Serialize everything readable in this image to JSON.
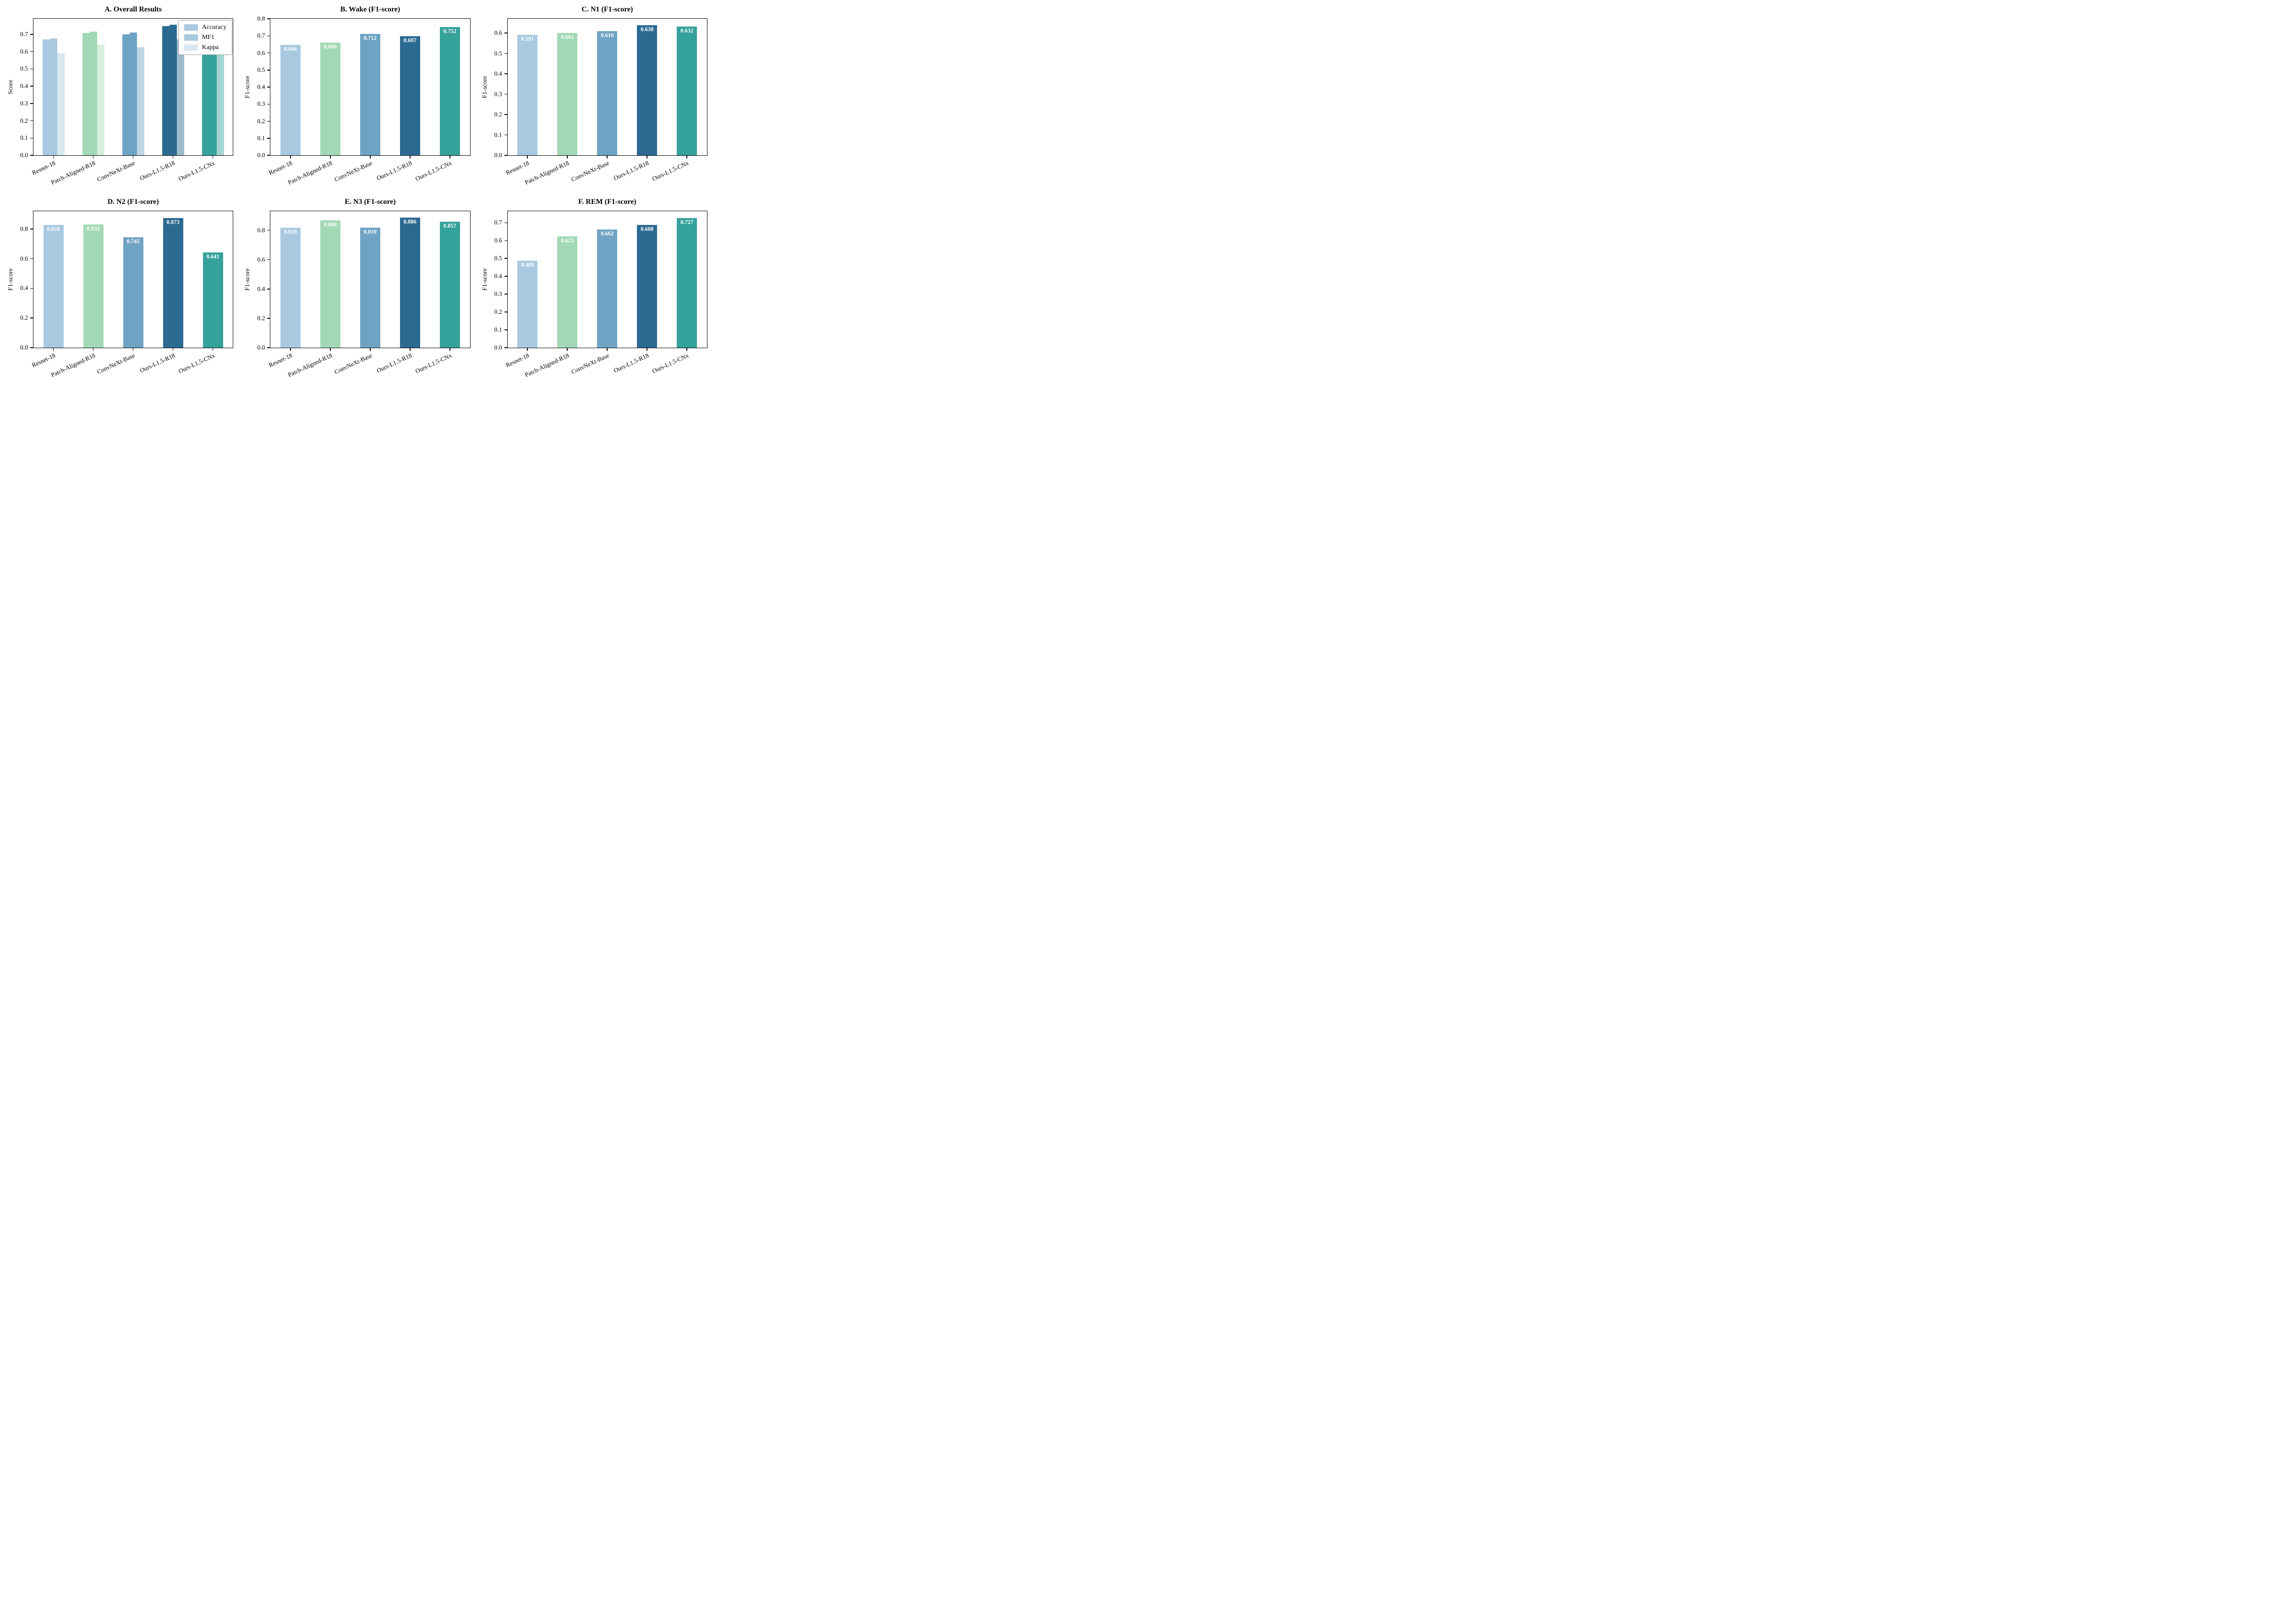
{
  "figure": {
    "background": "#ffffff",
    "model_colors": [
      "#a8c9e0",
      "#a2d9b4",
      "#6fa3c3",
      "#2b6a91",
      "#35a19b"
    ],
    "kappa_alpha": 0.45,
    "value_label_color": "#ffffff"
  },
  "chart_data": [
    {
      "id": "A",
      "type": "bar",
      "grouped": true,
      "title": "A. Overall Results",
      "ylabel": "Score",
      "categories": [
        "Resnet-18",
        "Patch-Aligned-R18",
        "ConvNeXt-Base",
        "Ours-L1.5-R18",
        "Ours-L1.5-CNx"
      ],
      "series": [
        {
          "name": "Accuracy",
          "style": "hatched",
          "values": [
            0.67,
            0.707,
            0.7,
            0.747,
            0.704
          ]
        },
        {
          "name": "MF1",
          "style": "solid",
          "values": [
            0.675,
            0.717,
            0.71,
            0.756,
            0.722
          ]
        },
        {
          "name": "Kappa",
          "style": "light",
          "values": [
            0.59,
            0.638,
            0.625,
            0.672,
            0.645
          ]
        }
      ],
      "ylim": [
        0,
        0.79
      ],
      "ytick_step": 0.1,
      "legend_position": "upper right",
      "grid": false,
      "value_labels": false
    },
    {
      "id": "B",
      "type": "bar",
      "grouped": false,
      "title": "B. Wake (F1-score)",
      "ylabel": "F1-score",
      "categories": [
        "Resnet-18",
        "Patch-Aligned-R18",
        "ConvNeXt-Base",
        "Ours-L1.5-R18",
        "Ours-L1.5-CNx"
      ],
      "values": [
        0.646,
        0.66,
        0.712,
        0.697,
        0.752
      ],
      "ylim": [
        0,
        0.8
      ],
      "ytick_step": 0.1,
      "grid": false,
      "value_labels": true
    },
    {
      "id": "C",
      "type": "bar",
      "grouped": false,
      "title": "C. N1 (F1-score)",
      "ylabel": "F1-score",
      "categories": [
        "Resnet-18",
        "Patch-Aligned-R18",
        "ConvNeXt-Base",
        "Ours-L1.5-R18",
        "Ours-L1.5-CNx"
      ],
      "values": [
        0.591,
        0.601,
        0.61,
        0.638,
        0.632
      ],
      "ylim": [
        0,
        0.67
      ],
      "ytick_step": 0.1,
      "grid": false,
      "value_labels": true
    },
    {
      "id": "D",
      "type": "bar",
      "grouped": false,
      "title": "D. N2 (F1-score)",
      "ylabel": "F1-score",
      "categories": [
        "Resnet-18",
        "Patch-Aligned-R18",
        "ConvNeXt-Base",
        "Ours-L1.5-R18",
        "Ours-L1.5-CNx"
      ],
      "values": [
        0.828,
        0.832,
        0.745,
        0.873,
        0.641
      ],
      "ylim": [
        0,
        0.92
      ],
      "ytick_step": 0.2,
      "grid": false,
      "value_labels": true
    },
    {
      "id": "E",
      "type": "bar",
      "grouped": false,
      "title": "E. N3 (F1-score)",
      "ylabel": "F1-score",
      "categories": [
        "Resnet-18",
        "Patch-Aligned-R18",
        "ConvNeXt-Base",
        "Ours-L1.5-R18",
        "Ours-L1.5-CNx"
      ],
      "values": [
        0.819,
        0.868,
        0.819,
        0.886,
        0.857
      ],
      "ylim": [
        0,
        0.93
      ],
      "ytick_step": 0.2,
      "grid": false,
      "value_labels": true
    },
    {
      "id": "F",
      "type": "bar",
      "grouped": false,
      "title": "F. REM (F1-score)",
      "ylabel": "F1-score",
      "categories": [
        "Resnet-18",
        "Patch-Aligned-R18",
        "ConvNeXt-Base",
        "Ours-L1.5-R18",
        "Ours-L1.5-CNx"
      ],
      "values": [
        0.489,
        0.623,
        0.662,
        0.688,
        0.727
      ],
      "ylim": [
        0,
        0.765
      ],
      "ytick_step": 0.1,
      "grid": false,
      "value_labels": true
    }
  ]
}
